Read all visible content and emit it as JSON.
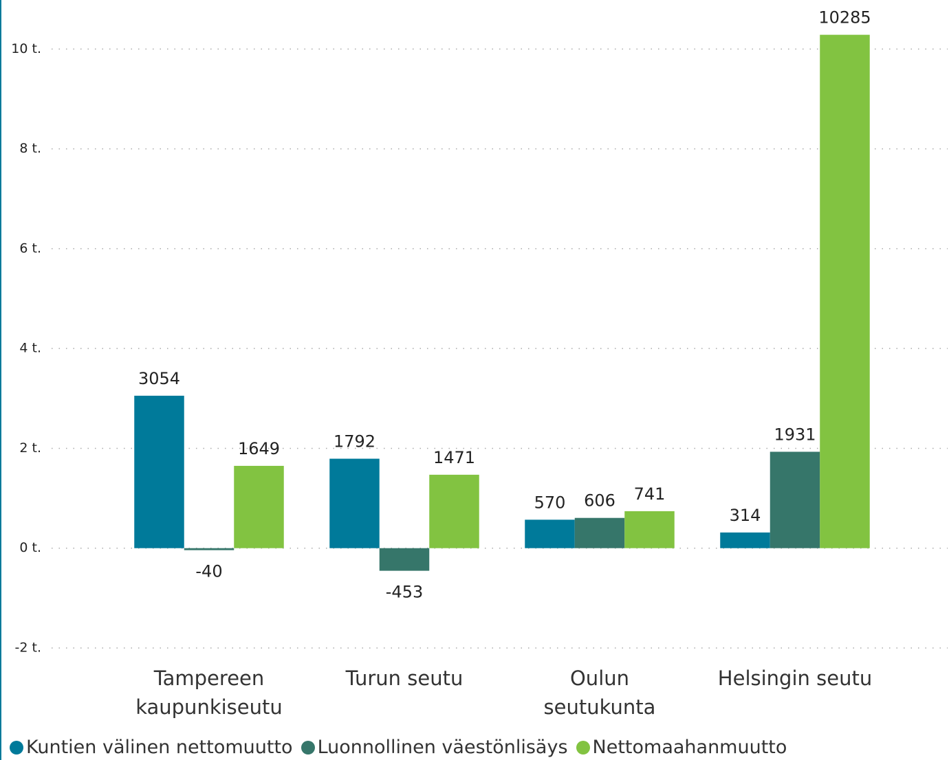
{
  "chart_data": {
    "type": "bar",
    "categories": [
      "Tampereen kaupunkiseutu",
      "Turun seutu",
      "Oulun seutukunta",
      "Helsingin seutu"
    ],
    "series": [
      {
        "name": "Kuntien välinen nettomuutto",
        "color": "#007a9a",
        "values": [
          3054,
          1792,
          570,
          314
        ]
      },
      {
        "name": "Luonnollinen väestönlisäys",
        "color": "#36766a",
        "values": [
          -40,
          -453,
          606,
          1931
        ]
      },
      {
        "name": "Nettomaahanmuutto",
        "color": "#82c341",
        "values": [
          1649,
          1471,
          741,
          10285
        ]
      }
    ],
    "ylim": [
      -2000,
      10500
    ],
    "yticks": [
      {
        "value": -2000,
        "label": "-2 t."
      },
      {
        "value": 0,
        "label": "0 t."
      },
      {
        "value": 2000,
        "label": "2 t."
      },
      {
        "value": 4000,
        "label": "4 t."
      },
      {
        "value": 6000,
        "label": "6 t."
      },
      {
        "value": 8000,
        "label": "8 t."
      },
      {
        "value": 10000,
        "label": "10 t."
      }
    ],
    "grid": true
  }
}
